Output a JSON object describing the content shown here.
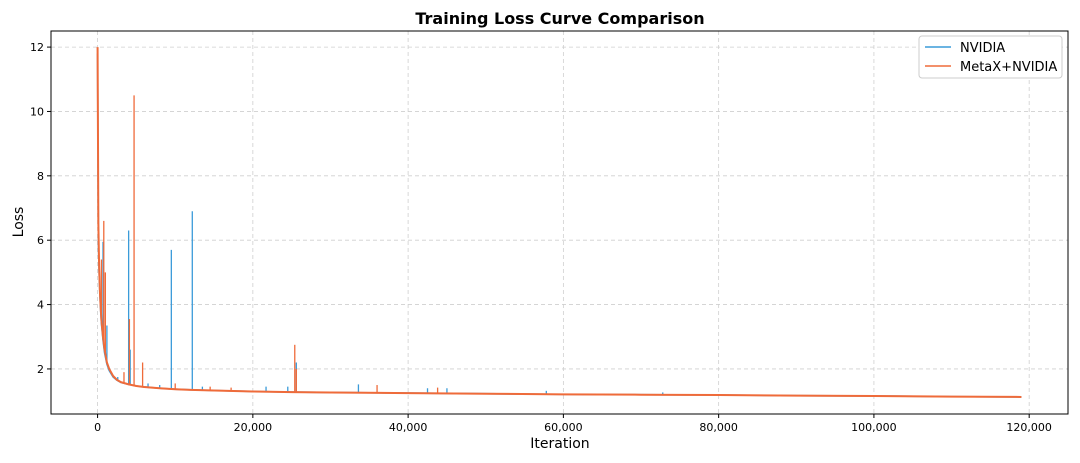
{
  "chart_data": {
    "type": "line",
    "title": "Training Loss Curve Comparison",
    "xlabel": "Iteration",
    "ylabel": "Loss",
    "xlim": [
      -6000,
      125000
    ],
    "ylim": [
      0.6,
      12.5
    ],
    "x_ticks": [
      0,
      20000,
      40000,
      60000,
      80000,
      100000,
      120000
    ],
    "x_tick_labels": [
      "0",
      "20,000",
      "40,000",
      "60,000",
      "80,000",
      "100,000",
      "120,000"
    ],
    "y_ticks": [
      2,
      4,
      6,
      8,
      10,
      12
    ],
    "y_tick_labels": [
      "2",
      "4",
      "6",
      "8",
      "10",
      "12"
    ],
    "grid": true,
    "legend_position": "top-right",
    "colors": {
      "NVIDIA": "#3a9bd9",
      "MetaX+NVIDIA": "#ef6b3a"
    },
    "series": [
      {
        "name": "NVIDIA",
        "x": [
          0,
          100,
          200,
          300,
          400,
          500,
          700,
          900,
          1200,
          1500,
          2000,
          2500,
          3000,
          4000,
          5000,
          6000,
          8000,
          10000,
          12000,
          15000,
          20000,
          25000,
          30000,
          40000,
          50000,
          60000,
          70000,
          80000,
          90000,
          100000,
          110000,
          119000
        ],
        "y": [
          11.8,
          6.0,
          5.0,
          4.3,
          3.8,
          3.4,
          2.9,
          2.5,
          2.15,
          1.95,
          1.75,
          1.65,
          1.58,
          1.52,
          1.47,
          1.44,
          1.4,
          1.37,
          1.35,
          1.33,
          1.3,
          1.28,
          1.27,
          1.25,
          1.23,
          1.21,
          1.2,
          1.19,
          1.17,
          1.16,
          1.14,
          1.13
        ],
        "spikes": [
          [
            700,
            5.95
          ],
          [
            1200,
            3.35
          ],
          [
            2600,
            1.75
          ],
          [
            4000,
            6.3
          ],
          [
            4200,
            2.6
          ],
          [
            6500,
            1.55
          ],
          [
            8000,
            1.5
          ],
          [
            9500,
            5.7
          ],
          [
            12200,
            6.9
          ],
          [
            13500,
            1.45
          ],
          [
            21700,
            1.45
          ],
          [
            24500,
            1.45
          ],
          [
            25600,
            2.2
          ],
          [
            33600,
            1.52
          ],
          [
            42500,
            1.4
          ],
          [
            45000,
            1.4
          ],
          [
            57800,
            1.32
          ],
          [
            72800,
            1.27
          ]
        ]
      },
      {
        "name": "MetaX+NVIDIA",
        "x": [
          0,
          100,
          200,
          300,
          400,
          500,
          700,
          900,
          1200,
          1500,
          2000,
          2500,
          3000,
          4000,
          5000,
          6000,
          8000,
          10000,
          12000,
          15000,
          20000,
          25000,
          30000,
          40000,
          50000,
          60000,
          70000,
          80000,
          90000,
          100000,
          110000,
          119000
        ],
        "y": [
          12.0,
          6.5,
          5.2,
          4.4,
          3.9,
          3.5,
          3.0,
          2.6,
          2.2,
          2.0,
          1.78,
          1.66,
          1.59,
          1.52,
          1.47,
          1.44,
          1.4,
          1.37,
          1.35,
          1.33,
          1.3,
          1.28,
          1.27,
          1.25,
          1.23,
          1.21,
          1.2,
          1.19,
          1.17,
          1.16,
          1.14,
          1.13
        ],
        "spikes": [
          [
            500,
            5.4
          ],
          [
            800,
            6.6
          ],
          [
            1000,
            5.0
          ],
          [
            3400,
            1.9
          ],
          [
            4100,
            3.55
          ],
          [
            4700,
            10.5
          ],
          [
            5800,
            2.2
          ],
          [
            10000,
            1.55
          ],
          [
            14500,
            1.45
          ],
          [
            17200,
            1.42
          ],
          [
            25400,
            2.75
          ],
          [
            25600,
            2.0
          ],
          [
            36000,
            1.5
          ],
          [
            43800,
            1.42
          ]
        ]
      }
    ]
  }
}
